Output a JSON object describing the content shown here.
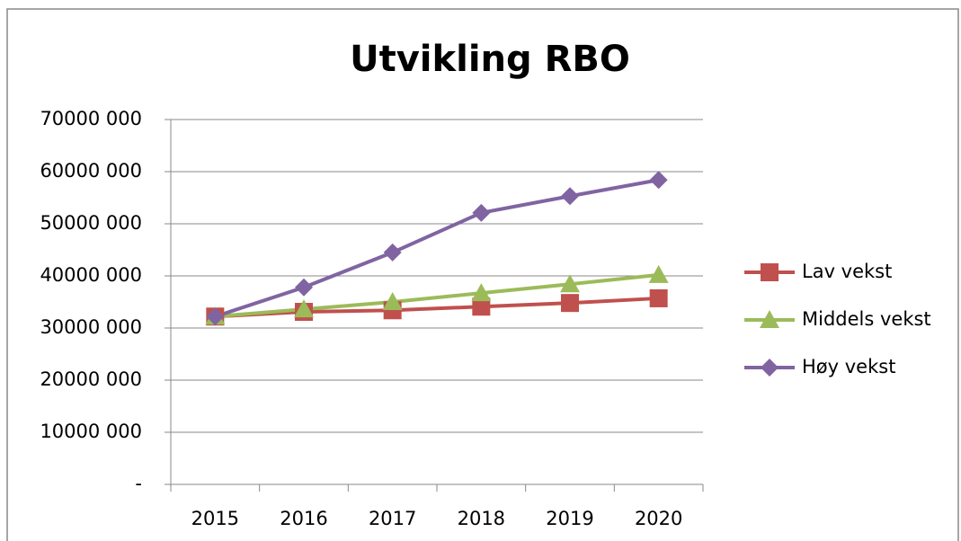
{
  "chart_data": {
    "type": "line",
    "title": "Utvikling RBO",
    "categories": [
      "2015",
      "2016",
      "2017",
      "2018",
      "2019",
      "2020"
    ],
    "series": [
      {
        "name": "Lav vekst",
        "color": "#c0504d",
        "marker": "square",
        "values": [
          32200000,
          33100000,
          33400000,
          34100000,
          34800000,
          35700000
        ]
      },
      {
        "name": "Middels vekst",
        "color": "#9bbb59",
        "marker": "triangle",
        "values": [
          32200000,
          33600000,
          35000000,
          36700000,
          38400000,
          40200000
        ]
      },
      {
        "name": "Høy vekst",
        "color": "#8064a2",
        "marker": "diamond",
        "values": [
          32200000,
          37800000,
          44500000,
          52100000,
          55300000,
          58400000
        ]
      }
    ],
    "ylim": [
      0,
      70000000
    ],
    "yticks": [
      {
        "value": 0,
        "label": "-"
      },
      {
        "value": 10000000,
        "label": "10000 000"
      },
      {
        "value": 20000000,
        "label": "20000 000"
      },
      {
        "value": 30000000,
        "label": "30000 000"
      },
      {
        "value": 40000000,
        "label": "40000 000"
      },
      {
        "value": 50000000,
        "label": "50000 000"
      },
      {
        "value": 60000000,
        "label": "60000 000"
      },
      {
        "value": 70000000,
        "label": "70000 000"
      }
    ],
    "grid": true,
    "legend": "right"
  }
}
